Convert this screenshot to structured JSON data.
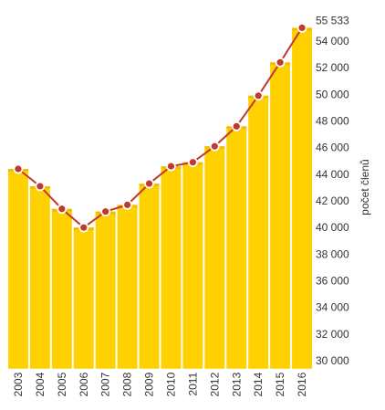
{
  "chart_data": {
    "type": "bar",
    "categories": [
      "2003",
      "2004",
      "2005",
      "2006",
      "2007",
      "2008",
      "2009",
      "2010",
      "2011",
      "2012",
      "2013",
      "2014",
      "2015",
      "2016"
    ],
    "series": [
      {
        "values": [
          44400,
          43100,
          41400,
          40000,
          41200,
          41700,
          43300,
          44600,
          44900,
          46100,
          47600,
          49900,
          52400,
          55000
        ],
        "kind": "bar",
        "color": "#FFD100"
      },
      {
        "values": [
          44400,
          43100,
          41400,
          40000,
          41200,
          41700,
          43300,
          44600,
          44900,
          46100,
          47600,
          49900,
          52400,
          55000
        ],
        "kind": "line",
        "color": "#C0392B"
      }
    ],
    "ylabel": "počet členů",
    "ylim": [
      29400,
      55533
    ],
    "yticks": [
      {
        "value": 30000,
        "label": "30 000"
      },
      {
        "value": 32000,
        "label": "32 000"
      },
      {
        "value": 34000,
        "label": "34 000"
      },
      {
        "value": 36000,
        "label": "36 000"
      },
      {
        "value": 38000,
        "label": "38 000"
      },
      {
        "value": 40000,
        "label": "40 000"
      },
      {
        "value": 42000,
        "label": "42 000"
      },
      {
        "value": 44000,
        "label": "44 000"
      },
      {
        "value": 46000,
        "label": "46 000"
      },
      {
        "value": 48000,
        "label": "48 000"
      },
      {
        "value": 50000,
        "label": "50 000"
      },
      {
        "value": 52000,
        "label": "52 000"
      },
      {
        "value": 54000,
        "label": "54 000"
      },
      {
        "value": 55533,
        "label": "55 533"
      }
    ],
    "yaxis_position": "right",
    "grid": false,
    "legend": "none"
  }
}
